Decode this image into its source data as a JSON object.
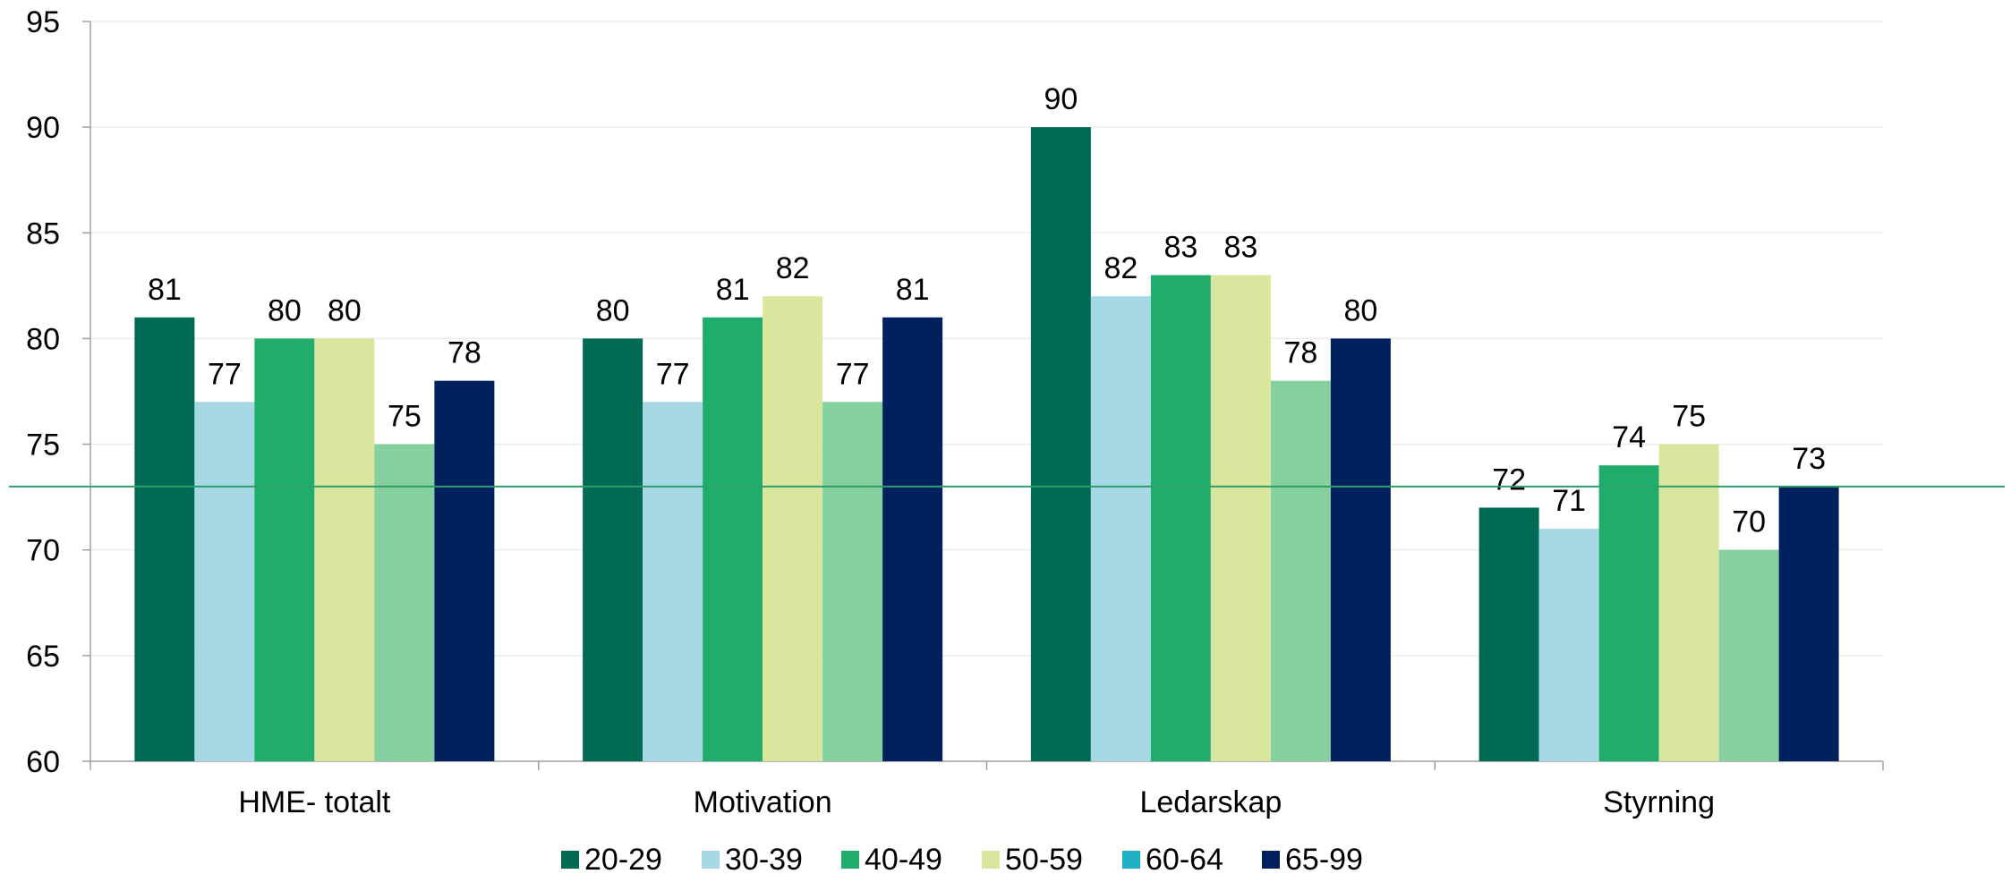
{
  "chart_data": {
    "type": "bar",
    "title": "",
    "xlabel": "",
    "ylabel": "",
    "categories": [
      "HME- totalt",
      "Motivation",
      "Ledarskap",
      "Styrning"
    ],
    "ylim": [
      60,
      95
    ],
    "yticks": [
      60,
      65,
      70,
      75,
      80,
      85,
      90,
      95
    ],
    "grid": true,
    "legend_position": "bottom",
    "reference_line": {
      "value": 73,
      "color": "#2e9e6b"
    },
    "series": [
      {
        "name": "20-29",
        "color": "#006a55",
        "values": [
          81,
          80,
          90,
          72
        ]
      },
      {
        "name": "30-39",
        "color": "#a6d8e6",
        "values": [
          77,
          77,
          82,
          71
        ]
      },
      {
        "name": "40-49",
        "color": "#20ad6c",
        "values": [
          80,
          81,
          83,
          74
        ]
      },
      {
        "name": "50-59",
        "color": "#d9e69e",
        "values": [
          80,
          82,
          83,
          75
        ]
      },
      {
        "name": "60-64",
        "color": "#1fb0c8",
        "values": [
          null,
          null,
          null,
          null
        ]
      },
      {
        "name": "65-99",
        "color": "#00205e",
        "values": [
          78,
          81,
          80,
          73
        ]
      }
    ],
    "hidden_bars": {
      "comment": "",
      "color": "#86cf9e",
      "values": [
        75,
        77,
        78,
        70
      ]
    }
  }
}
